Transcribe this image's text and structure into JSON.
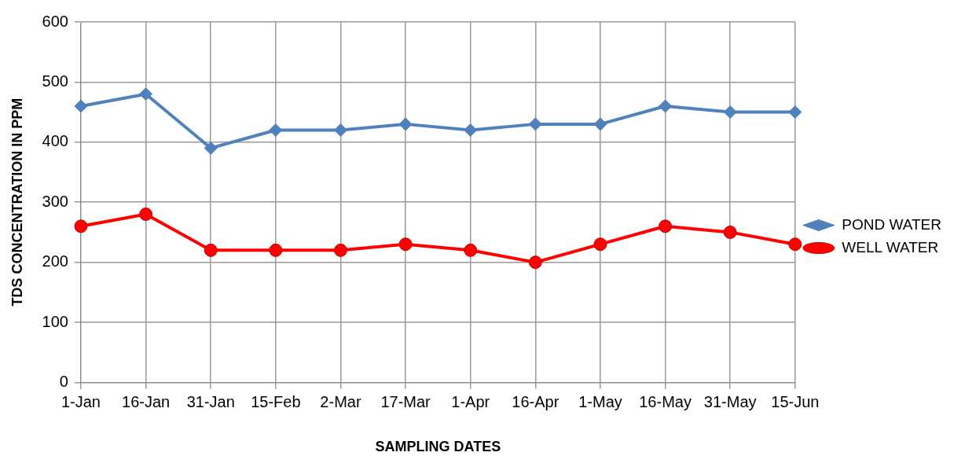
{
  "chart_data": {
    "type": "line",
    "xlabel": "SAMPLING DATES",
    "ylabel": "TDS CONCENTRATION IN PPM",
    "categories": [
      "1-Jan",
      "16-Jan",
      "31-Jan",
      "15-Feb",
      "2-Mar",
      "17-Mar",
      "1-Apr",
      "16-Apr",
      "1-May",
      "16-May",
      "31-May",
      "15-Jun"
    ],
    "series": [
      {
        "name": "POND WATER",
        "color": "#4f81bd",
        "marker": "diamond",
        "values": [
          460,
          480,
          390,
          420,
          420,
          430,
          420,
          430,
          430,
          460,
          450,
          450
        ]
      },
      {
        "name": "WELL WATER",
        "color": "#ff0000",
        "marker": "circle",
        "values": [
          260,
          280,
          220,
          220,
          220,
          230,
          220,
          200,
          230,
          260,
          250,
          230
        ]
      }
    ],
    "ylim": [
      0,
      600
    ],
    "yticks": [
      0,
      100,
      200,
      300,
      400,
      500,
      600
    ],
    "grid": true,
    "legend": "right",
    "line_style": "solid"
  }
}
